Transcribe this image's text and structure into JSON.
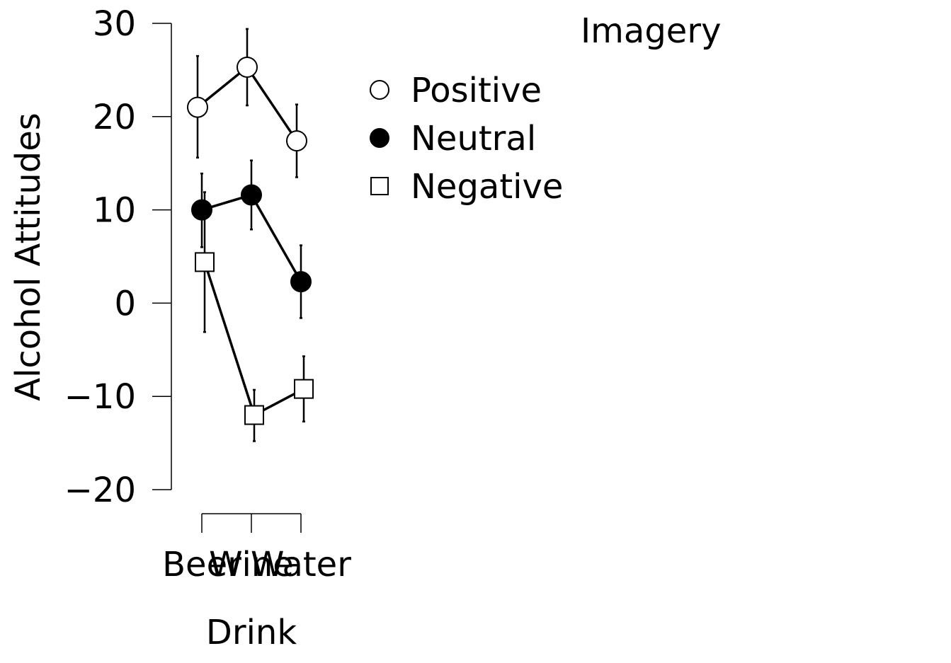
{
  "chart_data": {
    "type": "line",
    "xlabel": "Drink",
    "ylabel": "Alcohol Attitudes",
    "categories": [
      "Beer",
      "Wine",
      "Water"
    ],
    "ylim": [
      -20,
      30
    ],
    "yticks": [
      -20,
      -10,
      0,
      10,
      20,
      30
    ],
    "grid": false,
    "legend": {
      "title": "Imagery",
      "position": "top-right"
    },
    "series": [
      {
        "name": "Positive",
        "marker": "open-circle",
        "values": [
          21.0,
          25.3,
          17.4
        ],
        "error_low": [
          15.6,
          21.2,
          13.5
        ],
        "error_high": [
          26.5,
          29.4,
          21.3
        ]
      },
      {
        "name": "Neutral",
        "marker": "filled-circle",
        "values": [
          10.0,
          11.6,
          2.3
        ],
        "error_low": [
          6.0,
          7.9,
          -1.6
        ],
        "error_high": [
          13.9,
          15.3,
          6.2
        ]
      },
      {
        "name": "Negative",
        "marker": "open-square",
        "values": [
          4.4,
          -12.0,
          -9.2
        ],
        "error_low": [
          -3.1,
          -14.8,
          -12.7
        ],
        "error_high": [
          11.9,
          -9.3,
          -5.7
        ]
      }
    ]
  }
}
